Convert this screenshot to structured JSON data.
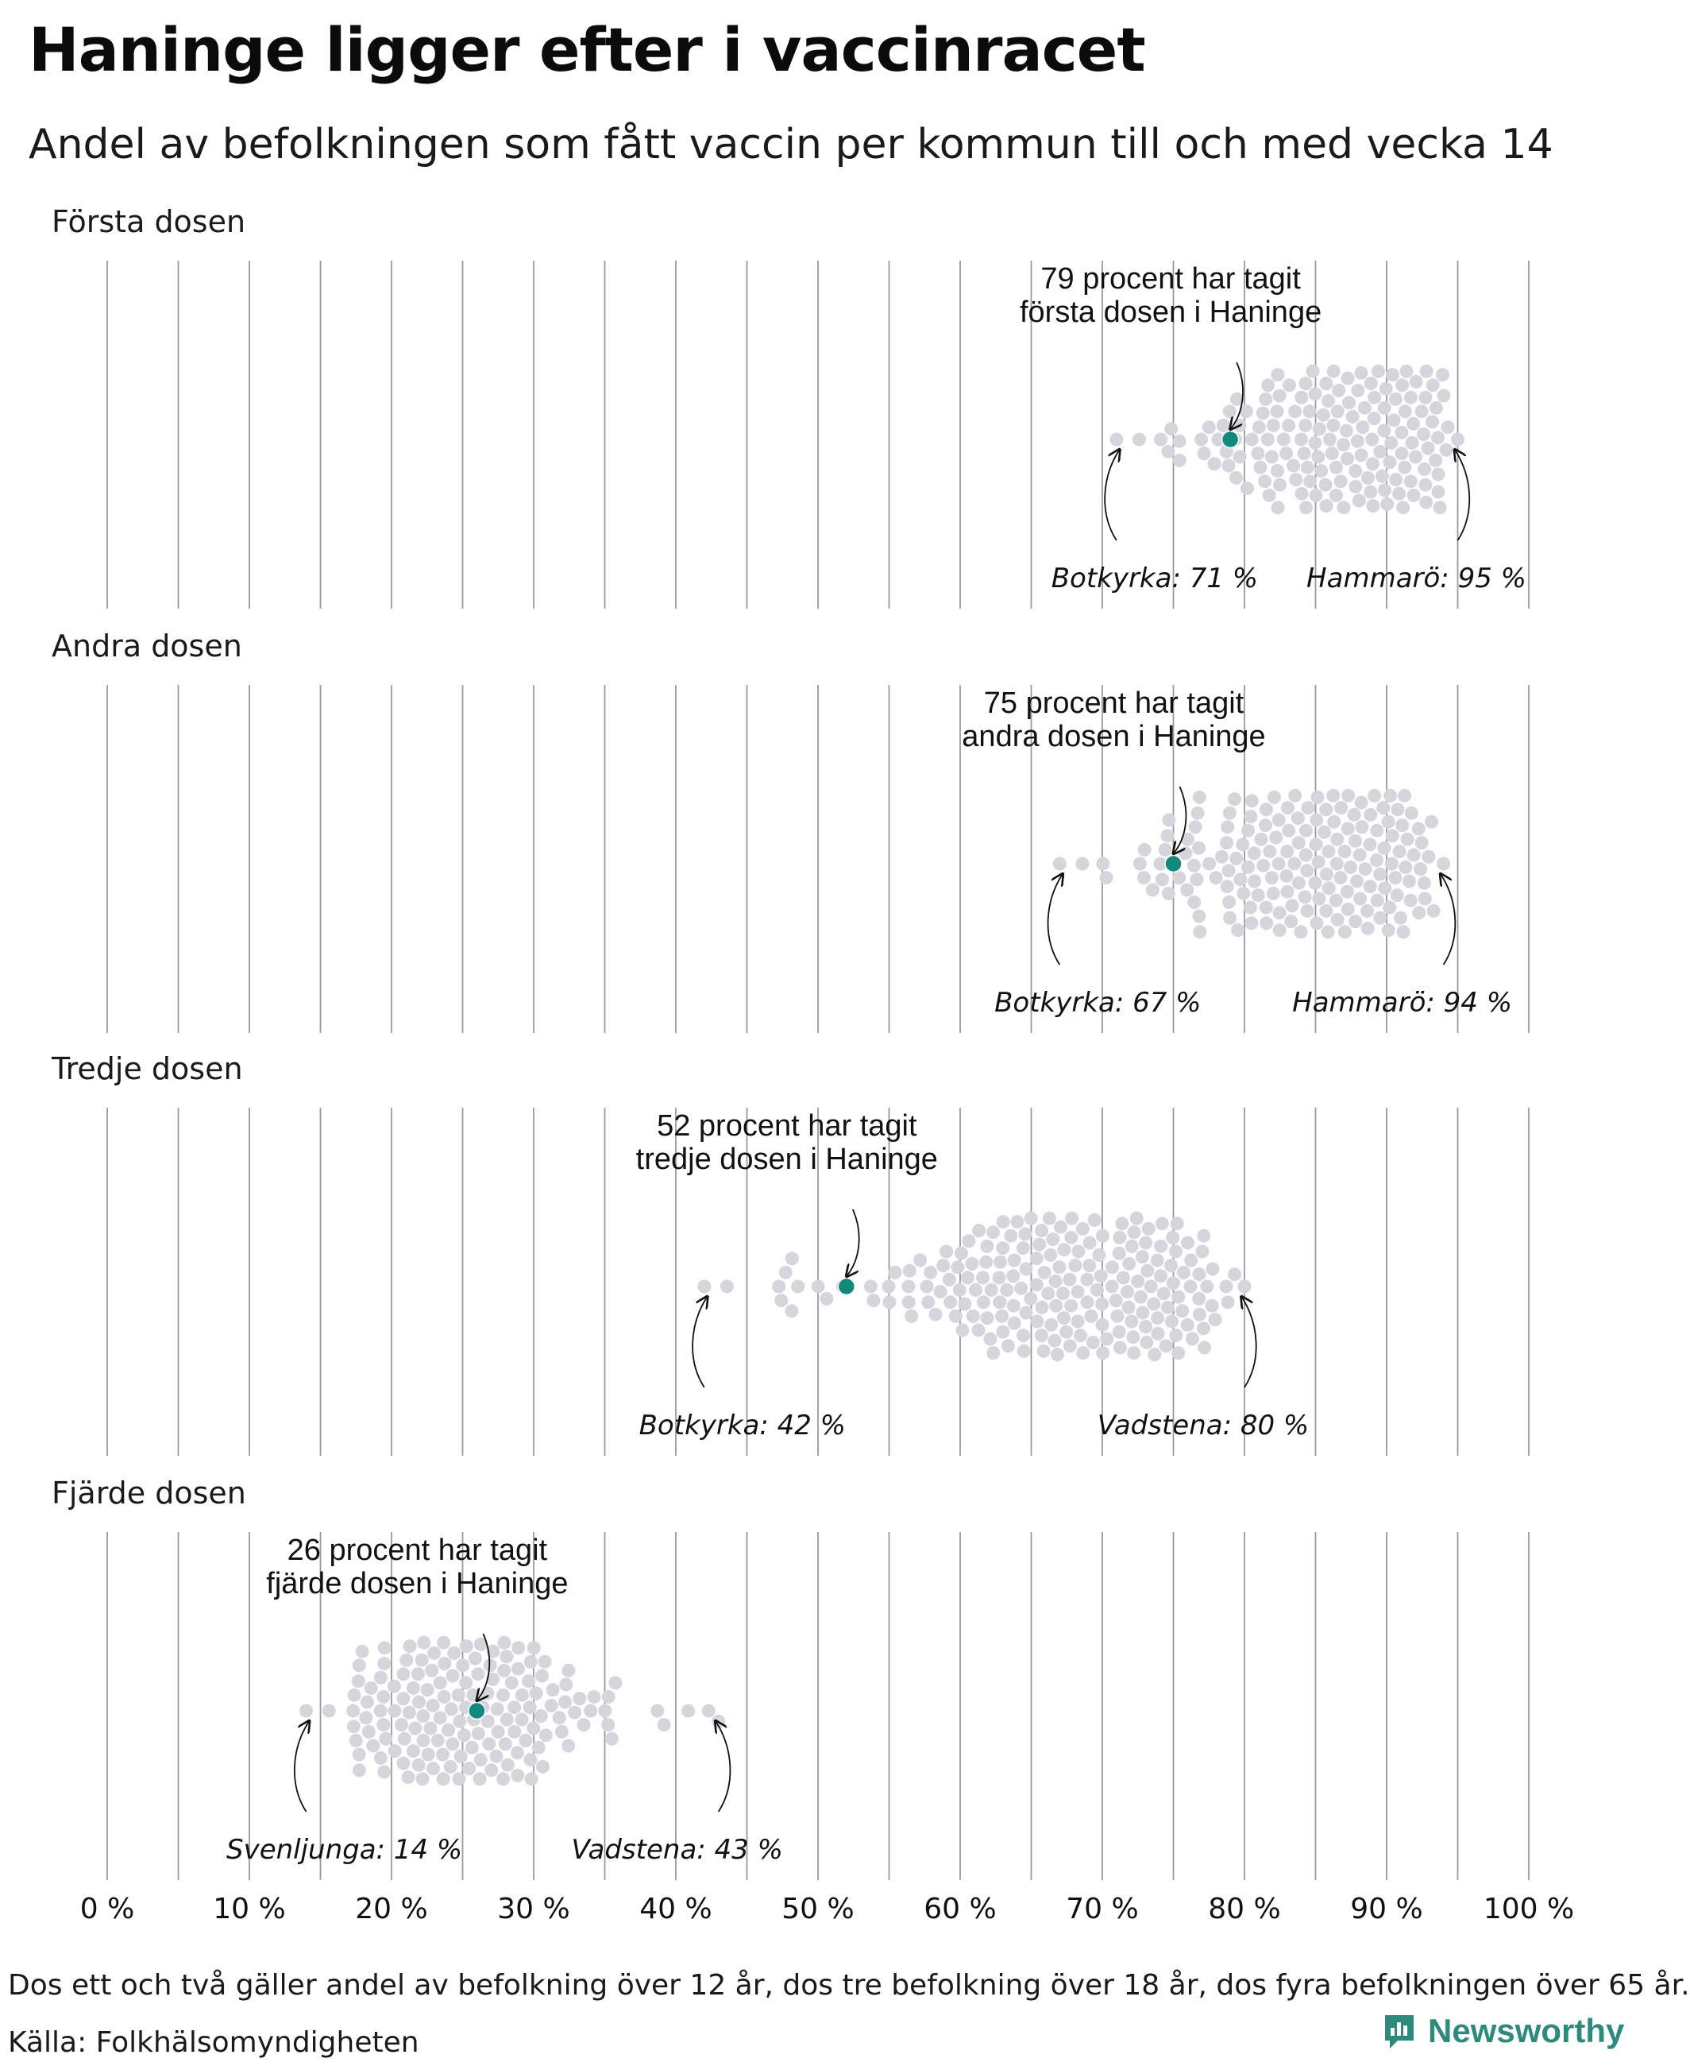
{
  "title": "Haninge ligger efter i vaccinracet",
  "subtitle": "Andel av befolkningen som fått vaccin per kommun till och med vecka 14",
  "footnote": "Dos ett och två gäller andel av befolkning över 12 år, dos tre befolkning över 18 år, dos fyra befolkningen över 65 år.",
  "source": "Källa: Folkhälsomyndigheten",
  "brand": {
    "name": "Newsworthy",
    "logo_icon": "newsworthy-logo-icon"
  },
  "colors": {
    "highlight": "#13897c",
    "dots": "#d5d5db",
    "grid": "#9a9a9a",
    "brand": "#2e8a7a"
  },
  "chart_data": {
    "type": "scatter",
    "x_ticks": [
      "0 %",
      "10 %",
      "20 %",
      "30 %",
      "40 %",
      "50 %",
      "60 %",
      "70 %",
      "80 %",
      "90 %",
      "100 %"
    ],
    "xlim": [
      0,
      100
    ],
    "panels": [
      {
        "name": "Första dosen",
        "highlight": {
          "value": 79,
          "label_line1": "79 procent har tagit",
          "label_line2": "första dosen i Haninge"
        },
        "min": {
          "value": 71,
          "label": "Botkyrka: 71 %"
        },
        "max": {
          "value": 95,
          "label": "Hammarö: 95 %"
        },
        "distribution": {
          "min": 71,
          "max": 95,
          "peak": 89,
          "spread_low": 5.5,
          "spread_high": 3.5,
          "count": 290
        }
      },
      {
        "name": "Andra dosen",
        "highlight": {
          "value": 75,
          "label_line1": "75 procent har tagit",
          "label_line2": "andra dosen i Haninge"
        },
        "min": {
          "value": 67,
          "label": "Botkyrka: 67 %"
        },
        "max": {
          "value": 94,
          "label": "Hammarö: 94 %"
        },
        "distribution": {
          "min": 67,
          "max": 94,
          "peak": 87,
          "spread_low": 5,
          "spread_high": 3.6,
          "count": 290
        }
      },
      {
        "name": "Tredje dosen",
        "highlight": {
          "value": 52,
          "label_line1": "52 procent har tagit",
          "label_line2": "tredje dosen i Haninge"
        },
        "min": {
          "value": 42,
          "label": "Botkyrka: 42 %"
        },
        "max": {
          "value": 80,
          "label": "Vadstena: 80 %"
        },
        "distribution": {
          "min": 42,
          "max": 80,
          "peak": 69,
          "spread_low": 6,
          "spread_high": 4.5,
          "count": 290
        }
      },
      {
        "name": "Fjärde dosen",
        "highlight": {
          "value": 26,
          "label_line1": "26 procent har tagit",
          "label_line2": "fjärde dosen i Haninge"
        },
        "min": {
          "value": 14,
          "label": "Svenljunga: 14 %"
        },
        "max": {
          "value": 43,
          "label": "Vadstena: 43 %"
        },
        "distribution": {
          "min": 14,
          "max": 43,
          "peak": 25,
          "spread_low": 4.2,
          "spread_high": 5,
          "count": 290
        }
      }
    ]
  }
}
